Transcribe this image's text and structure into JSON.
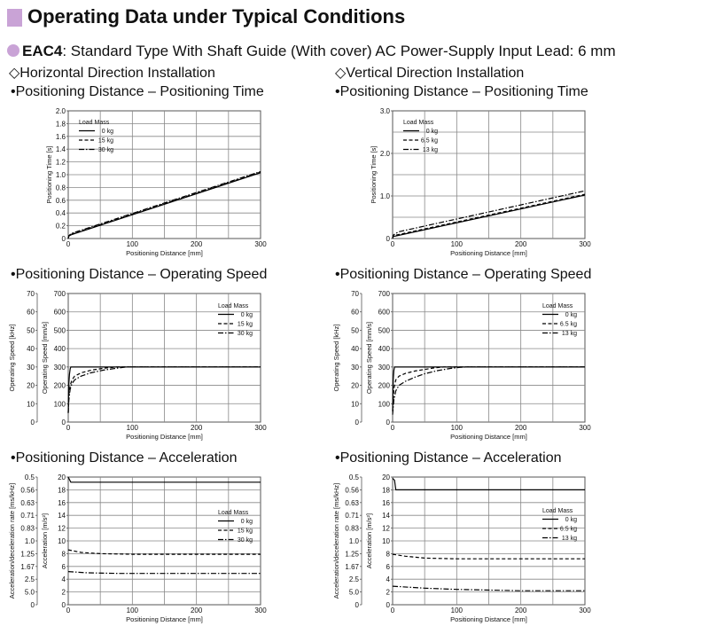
{
  "page": {
    "title": "Operating Data under Typical Conditions",
    "subtitle_model": "EAC4",
    "subtitle_rest": ": Standard Type  With Shaft Guide (With cover)  AC Power-Supply Input  Lead: 6 mm",
    "left_install": "◇Horizontal Direction Installation",
    "right_install": "◇Vertical Direction Installation",
    "colors": {
      "accent": "#c9a3d6",
      "grid": "#808080",
      "line": "#000000"
    }
  },
  "sections": {
    "time": "•Positioning Distance – Positioning Time",
    "speed": "•Positioning Distance – Operating Speed",
    "accel": "•Positioning Distance – Acceleration"
  },
  "chart_data": [
    {
      "id": "h-time",
      "type": "line",
      "xlabel": "Positioning Distance [mm]",
      "ylabel": "Positioning Time [s]",
      "xlim": [
        0,
        300
      ],
      "xticks": [
        "0",
        "100",
        "200",
        "300"
      ],
      "ylim": [
        0,
        2.0
      ],
      "yticks": [
        "0",
        "0.2",
        "0.4",
        "0.6",
        "0.8",
        "1.0",
        "1.2",
        "1.4",
        "1.6",
        "1.8",
        "2.0"
      ],
      "legend_title": "Load Mass",
      "legend_position": "top-left",
      "series": [
        {
          "name": "0 kg",
          "style": "solid",
          "x": [
            0,
            1,
            5,
            300
          ],
          "y": [
            0,
            0.04,
            0.06,
            1.03
          ]
        },
        {
          "name": "15 kg",
          "style": "dashed",
          "x": [
            0,
            1,
            5,
            300
          ],
          "y": [
            0,
            0.04,
            0.07,
            1.04
          ]
        },
        {
          "name": "30 kg",
          "style": "dashdot",
          "x": [
            0,
            1,
            5,
            300
          ],
          "y": [
            0,
            0.045,
            0.08,
            1.05
          ]
        }
      ]
    },
    {
      "id": "v-time",
      "type": "line",
      "xlabel": "Positioning Distance [mm]",
      "ylabel": "Positioning Time [s]",
      "xlim": [
        0,
        300
      ],
      "xticks": [
        "0",
        "100",
        "200",
        "300"
      ],
      "ylim": [
        0,
        3.0
      ],
      "yticks": [
        "0",
        "1.0",
        "2.0",
        "3.0"
      ],
      "legend_title": "Load Mass",
      "legend_position": "top-left",
      "series": [
        {
          "name": "0 kg",
          "style": "solid",
          "x": [
            0,
            1,
            5,
            300
          ],
          "y": [
            0,
            0.05,
            0.06,
            1.02
          ]
        },
        {
          "name": "6.5 kg",
          "style": "dashed",
          "x": [
            0,
            1,
            5,
            300
          ],
          "y": [
            0,
            0.06,
            0.08,
            1.04
          ]
        },
        {
          "name": "13 kg",
          "style": "dashdot",
          "x": [
            0,
            1,
            5,
            10,
            300
          ],
          "y": [
            0,
            0.08,
            0.12,
            0.16,
            1.12
          ]
        }
      ]
    },
    {
      "id": "h-speed",
      "type": "line",
      "xlabel": "Positioning Distance [mm]",
      "ylabel": "Operating Speed [mm/s]",
      "ylabel2": "Operating Speed [kHz]",
      "xlim": [
        0,
        300
      ],
      "xticks": [
        "0",
        "100",
        "200",
        "300"
      ],
      "ylim": [
        0,
        700
      ],
      "yticks": [
        "0",
        "100",
        "200",
        "300",
        "400",
        "500",
        "600",
        "700"
      ],
      "y2ticks": [
        "0",
        "10",
        "20",
        "30",
        "40",
        "50",
        "60",
        "70"
      ],
      "legend_title": "Load Mass",
      "legend_position": "top-right",
      "series": [
        {
          "name": "0 kg",
          "style": "solid",
          "x": [
            0,
            0.5,
            1,
            2,
            3,
            4,
            300
          ],
          "y": [
            50,
            150,
            210,
            260,
            290,
            300,
            300
          ]
        },
        {
          "name": "15 kg",
          "style": "dashed",
          "x": [
            0,
            1,
            3,
            6,
            10,
            20,
            35,
            55,
            75,
            300
          ],
          "y": [
            50,
            150,
            200,
            230,
            250,
            268,
            282,
            293,
            300,
            300
          ]
        },
        {
          "name": "30 kg",
          "style": "dashdot",
          "x": [
            0,
            1,
            3,
            6,
            10,
            20,
            35,
            55,
            75,
            90,
            300
          ],
          "y": [
            50,
            120,
            180,
            210,
            230,
            250,
            268,
            283,
            293,
            300,
            300
          ]
        }
      ]
    },
    {
      "id": "v-speed",
      "type": "line",
      "xlabel": "Positioning Distance [mm]",
      "ylabel": "Operating Speed [mm/s]",
      "ylabel2": "Operating Speed [kHz]",
      "xlim": [
        0,
        300
      ],
      "xticks": [
        "0",
        "100",
        "200",
        "300"
      ],
      "ylim": [
        0,
        700
      ],
      "yticks": [
        "0",
        "100",
        "200",
        "300",
        "400",
        "500",
        "600",
        "700"
      ],
      "y2ticks": [
        "0",
        "10",
        "20",
        "30",
        "40",
        "50",
        "60",
        "70"
      ],
      "legend_title": "Load Mass",
      "legend_position": "top-right",
      "series": [
        {
          "name": "0 kg",
          "style": "solid",
          "x": [
            0,
            0.5,
            1,
            2,
            3,
            300
          ],
          "y": [
            60,
            160,
            230,
            280,
            300,
            300
          ]
        },
        {
          "name": "6.5 kg",
          "style": "dashed",
          "x": [
            0,
            2,
            5,
            10,
            20,
            35,
            50,
            65,
            80,
            300
          ],
          "y": [
            60,
            180,
            230,
            250,
            265,
            278,
            287,
            295,
            300,
            300
          ]
        },
        {
          "name": "13 kg",
          "style": "dashdot",
          "x": [
            0,
            2,
            5,
            10,
            20,
            35,
            50,
            70,
            90,
            105,
            115,
            300
          ],
          "y": [
            40,
            120,
            170,
            200,
            222,
            245,
            263,
            280,
            292,
            298,
            300,
            300
          ]
        }
      ]
    },
    {
      "id": "h-accel",
      "type": "line",
      "xlabel": "Positioning Distance [mm]",
      "ylabel": "Acceleration [m/s²]",
      "ylabel2": "Acceleration/deceleration rate [ms/kHz]",
      "xlim": [
        0,
        300
      ],
      "xticks": [
        "0",
        "100",
        "200",
        "300"
      ],
      "ylim": [
        0,
        20
      ],
      "yticks": [
        "0",
        "2",
        "4",
        "6",
        "8",
        "10",
        "12",
        "14",
        "16",
        "18",
        "20"
      ],
      "y2ticks": [
        "0",
        "5.0",
        "2.5",
        "1.67",
        "1.25",
        "1.0",
        "0.83",
        "0.71",
        "0.63",
        "0.56",
        "0.5"
      ],
      "legend_title": "Load Mass",
      "legend_position": "right",
      "series": [
        {
          "name": "0 kg",
          "style": "solid",
          "x": [
            0,
            2,
            4,
            300
          ],
          "y": [
            20,
            19.6,
            19.2,
            19.2
          ]
        },
        {
          "name": "15 kg",
          "style": "dashed",
          "x": [
            0,
            20,
            50,
            100,
            300
          ],
          "y": [
            8.6,
            8.2,
            8.0,
            7.9,
            7.9
          ]
        },
        {
          "name": "30 kg",
          "style": "dashdot",
          "x": [
            0,
            30,
            80,
            150,
            300
          ],
          "y": [
            5.2,
            5.0,
            4.9,
            4.9,
            4.9
          ]
        }
      ]
    },
    {
      "id": "v-accel",
      "type": "line",
      "xlabel": "Positioning Distance [mm]",
      "ylabel": "Acceleration [m/s²]",
      "ylabel2": "Acceleration/deceleration rate [ms/kHz]",
      "xlim": [
        0,
        300
      ],
      "xticks": [
        "0",
        "100",
        "200",
        "300"
      ],
      "ylim": [
        0,
        20
      ],
      "yticks": [
        "0",
        "2",
        "4",
        "6",
        "8",
        "10",
        "12",
        "14",
        "16",
        "18",
        "20"
      ],
      "y2ticks": [
        "0",
        "5.0",
        "2.5",
        "1.67",
        "1.25",
        "1.0",
        "0.83",
        "0.71",
        "0.63",
        "0.56",
        "0.5"
      ],
      "legend_title": "Load Mass",
      "legend_position": "right",
      "series": [
        {
          "name": "0 kg",
          "style": "solid",
          "x": [
            0,
            3,
            5,
            300
          ],
          "y": [
            19.8,
            19.5,
            18.0,
            18.0
          ]
        },
        {
          "name": "6.5 kg",
          "style": "dashed",
          "x": [
            0,
            20,
            50,
            100,
            300
          ],
          "y": [
            7.9,
            7.6,
            7.3,
            7.2,
            7.2
          ]
        },
        {
          "name": "13 kg",
          "style": "dashdot",
          "x": [
            0,
            50,
            100,
            200,
            300
          ],
          "y": [
            2.9,
            2.6,
            2.4,
            2.2,
            2.2
          ]
        }
      ]
    }
  ]
}
